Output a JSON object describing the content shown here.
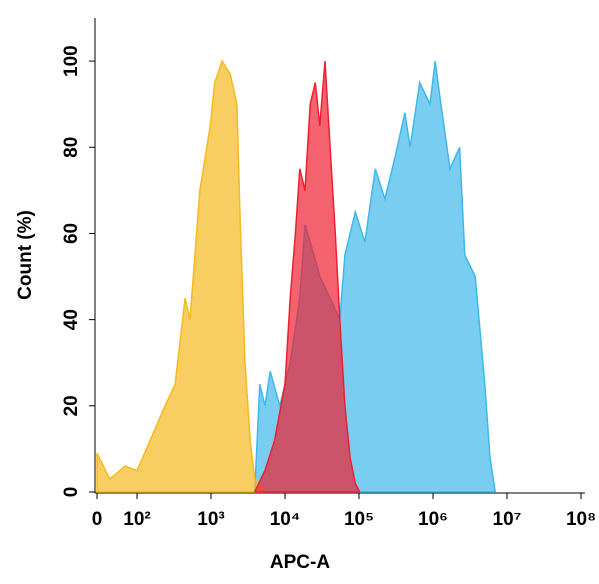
{
  "chart_data": {
    "type": "histogram-overlay",
    "xlabel": "APC-A",
    "ylabel": "Count (%)",
    "xscale": "symlog",
    "xlim": [
      0,
      100000000
    ],
    "ylim": [
      0,
      110
    ],
    "xticks": [
      {
        "value": 0,
        "label": "0"
      },
      {
        "value": 100,
        "label": "10²"
      },
      {
        "value": 1000,
        "label": "10³"
      },
      {
        "value": 10000,
        "label": "10⁴"
      },
      {
        "value": 100000,
        "label": "10⁵"
      },
      {
        "value": 1000000,
        "label": "10⁶"
      },
      {
        "value": 10000000,
        "label": "10⁷"
      },
      {
        "value": 100000000,
        "label": "10⁸"
      }
    ],
    "yticks": [
      0,
      20,
      40,
      60,
      80,
      100
    ],
    "series": [
      {
        "color": "#3fb8ea",
        "x": [
          3890,
          4571,
          5370,
          6310,
          8511,
          11749,
          15849,
          18621,
          21878,
          29512,
          40738,
          54954,
          64565,
          89125,
          120226,
          165959,
          223872,
          309030,
          416869,
          489779,
          660693,
          912011,
          1071519,
          1230269,
          1698244,
          2290868,
          2691535,
          3715352,
          5011872,
          5888437,
          6918310
        ],
        "values": [
          0,
          25,
          20,
          28,
          20,
          30,
          45,
          62,
          58,
          50,
          45,
          40,
          55,
          65,
          58,
          75,
          68,
          78,
          88,
          80,
          95,
          90,
          100,
          92,
          75,
          80,
          55,
          50,
          25,
          8,
          0
        ]
      },
      {
        "color": "#f5b921",
        "x": [
          0,
          32,
          70,
          100,
          151,
          240,
          327,
          446,
          521,
          708,
          977,
          1122,
          1413,
          1820,
          2239,
          2455,
          2884,
          3388,
          3890,
          5370
        ],
        "values": [
          9,
          3,
          6,
          5,
          12,
          20,
          25,
          45,
          40,
          70,
          85,
          95,
          100,
          97,
          90,
          65,
          30,
          12,
          3,
          0
        ]
      },
      {
        "color": "#ee2030",
        "x": [
          3890,
          5370,
          7244,
          10000,
          11749,
          13804,
          15849,
          18621,
          21878,
          25704,
          29512,
          34674,
          40738,
          47863,
          54954,
          64565,
          75858,
          89125,
          102329
        ],
        "values": [
          0,
          5,
          12,
          25,
          45,
          60,
          75,
          70,
          90,
          95,
          85,
          100,
          80,
          60,
          40,
          20,
          8,
          2,
          0
        ]
      }
    ]
  }
}
